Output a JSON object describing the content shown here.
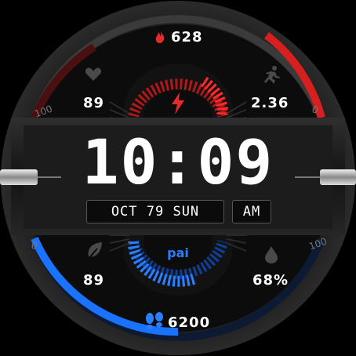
{
  "time": "10:09",
  "date": "OCT 79 SUN",
  "ampm": "AM",
  "calories": "628",
  "heart_rate": "89",
  "distance": "2.36",
  "pai_label": "pai",
  "pai_value": "89",
  "humidity": "68%",
  "steps": "6200",
  "scale": {
    "top_left_max": "100",
    "top_right_min": "0",
    "bottom_left_min": "0",
    "bottom_right_max": "100"
  },
  "colors": {
    "accent_red": "#d61f1f",
    "accent_blue": "#1a73ff",
    "text": "#ffffff"
  },
  "icons": {
    "calories": "flame-icon",
    "heart": "heart-icon",
    "activity": "runner-icon",
    "energy": "lightning-icon",
    "leaf": "leaf-icon",
    "water": "drop-icon",
    "steps": "footprints-icon"
  },
  "gauges": {
    "top_arc_level": 0.35,
    "bottom_arc_level": 0.75
  }
}
